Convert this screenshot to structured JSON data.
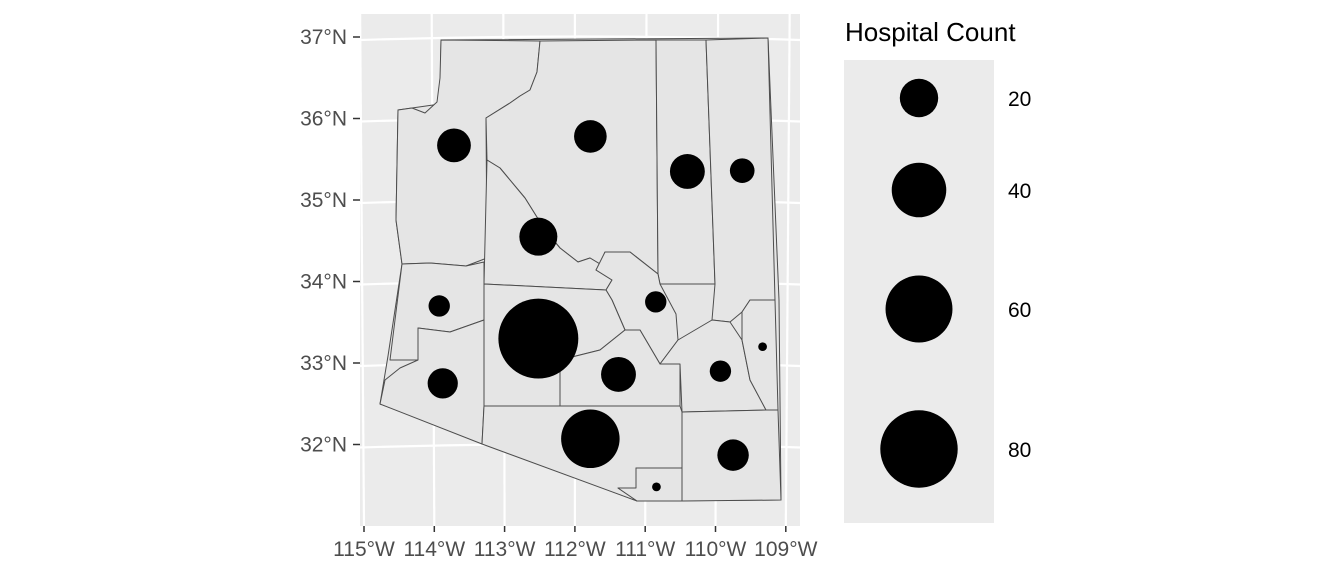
{
  "chart_data": {
    "type": "scatter",
    "subtype": "proportional-symbol-map",
    "region": "Arizona counties",
    "x_ticks": [
      "115°W",
      "114°W",
      "113°W",
      "112°W",
      "111°W",
      "110°W",
      "109°W"
    ],
    "y_ticks": [
      "37°N",
      "36°N",
      "35°N",
      "34°N",
      "33°N",
      "32°N"
    ],
    "xlim": [
      -115.05,
      -108.85
    ],
    "ylim": [
      31.0,
      37.2
    ],
    "legend": {
      "title": "Hospital Count",
      "position": "right",
      "entries": [
        {
          "label": "20",
          "value": 20
        },
        {
          "label": "40",
          "value": 40
        },
        {
          "label": "60",
          "value": 60
        },
        {
          "label": "80",
          "value": 80
        }
      ]
    },
    "points": [
      {
        "lon": -113.72,
        "lat": 35.67,
        "count": 15
      },
      {
        "lon": -111.78,
        "lat": 35.78,
        "count": 14
      },
      {
        "lon": -110.4,
        "lat": 35.35,
        "count": 16
      },
      {
        "lon": -109.62,
        "lat": 35.36,
        "count": 8
      },
      {
        "lon": -112.52,
        "lat": 34.55,
        "count": 19
      },
      {
        "lon": -110.85,
        "lat": 33.75,
        "count": 6
      },
      {
        "lon": -113.93,
        "lat": 33.7,
        "count": 6
      },
      {
        "lon": -112.52,
        "lat": 33.3,
        "count": 84
      },
      {
        "lon": -109.33,
        "lat": 33.2,
        "count": 1
      },
      {
        "lon": -111.38,
        "lat": 32.86,
        "count": 16
      },
      {
        "lon": -109.93,
        "lat": 32.9,
        "count": 6
      },
      {
        "lon": -113.88,
        "lat": 32.75,
        "count": 12
      },
      {
        "lon": -111.78,
        "lat": 32.07,
        "count": 45
      },
      {
        "lon": -109.75,
        "lat": 31.87,
        "count": 13
      },
      {
        "lon": -110.84,
        "lat": 31.48,
        "count": 1
      }
    ],
    "grid": true,
    "colors": {
      "panel": "#ebebeb",
      "grid": "#ffffff",
      "county_fill": "#e5e5e5",
      "county_line": "#4d4d4d",
      "point": "#000000"
    }
  }
}
